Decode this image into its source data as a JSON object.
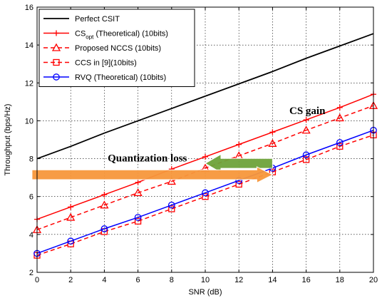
{
  "chart_data": {
    "type": "line",
    "title": "",
    "xlabel": "SNR (dB)",
    "ylabel": "Throughput (bps/Hz)",
    "xlim": [
      0,
      20
    ],
    "ylim": [
      2,
      16
    ],
    "xticks": [
      0,
      2,
      4,
      6,
      8,
      10,
      12,
      14,
      16,
      18,
      20
    ],
    "yticks": [
      2,
      4,
      6,
      8,
      10,
      12,
      14,
      16
    ],
    "grid": true,
    "legend_position": "top-left",
    "x": [
      0,
      2,
      4,
      6,
      8,
      10,
      12,
      14,
      16,
      18,
      20
    ],
    "series": [
      {
        "name": "Perfect CSIT",
        "color": "#000000",
        "dash": "solid",
        "marker": "none",
        "values": [
          8.0,
          8.65,
          9.35,
          10.0,
          10.65,
          11.3,
          11.95,
          12.6,
          13.3,
          13.95,
          14.6
        ]
      },
      {
        "name": "CS",
        "name_sub": "opt",
        "name_rest": " (Theoretical) (10bits)",
        "color": "#ff0000",
        "dash": "solid",
        "marker": "plus",
        "values": [
          4.8,
          5.45,
          6.1,
          6.75,
          7.45,
          8.1,
          8.75,
          9.4,
          10.05,
          10.7,
          11.4
        ]
      },
      {
        "name": "Proposed NCCS (10bits)",
        "color": "#ff0000",
        "dash": "dashed",
        "marker": "triangle",
        "values": [
          4.25,
          4.9,
          5.55,
          6.2,
          6.8,
          7.5,
          8.15,
          8.8,
          9.5,
          10.15,
          10.8
        ]
      },
      {
        "name": "CCS in [9](10bits)",
        "color": "#ff0000",
        "dash": "dashed",
        "marker": "square",
        "values": [
          2.9,
          3.5,
          4.15,
          4.7,
          5.35,
          6.0,
          6.65,
          7.3,
          7.95,
          8.65,
          9.25
        ]
      },
      {
        "name": "RVQ (Theoretical) (10bits)",
        "color": "#0000ff",
        "dash": "solid",
        "marker": "circle",
        "values": [
          3.0,
          3.65,
          4.3,
          4.9,
          5.55,
          6.2,
          6.85,
          7.5,
          8.2,
          8.85,
          9.5
        ]
      }
    ],
    "annotations": [
      {
        "text": "CS gain",
        "x": 15.0,
        "y": 10.35
      },
      {
        "text": "Quantization loss",
        "x": 4.2,
        "y": 7.85
      }
    ],
    "arrows": [
      {
        "name": "quantization-loss-arrow",
        "from_x": 14.0,
        "to_x": 10.0,
        "y": 7.75,
        "color": "#6ea33a",
        "direction": "left"
      },
      {
        "name": "cs-gain-arrow",
        "from_x": -0.3,
        "to_x": 14.0,
        "y": 7.15,
        "color": "#f7973c",
        "direction": "right"
      }
    ]
  }
}
